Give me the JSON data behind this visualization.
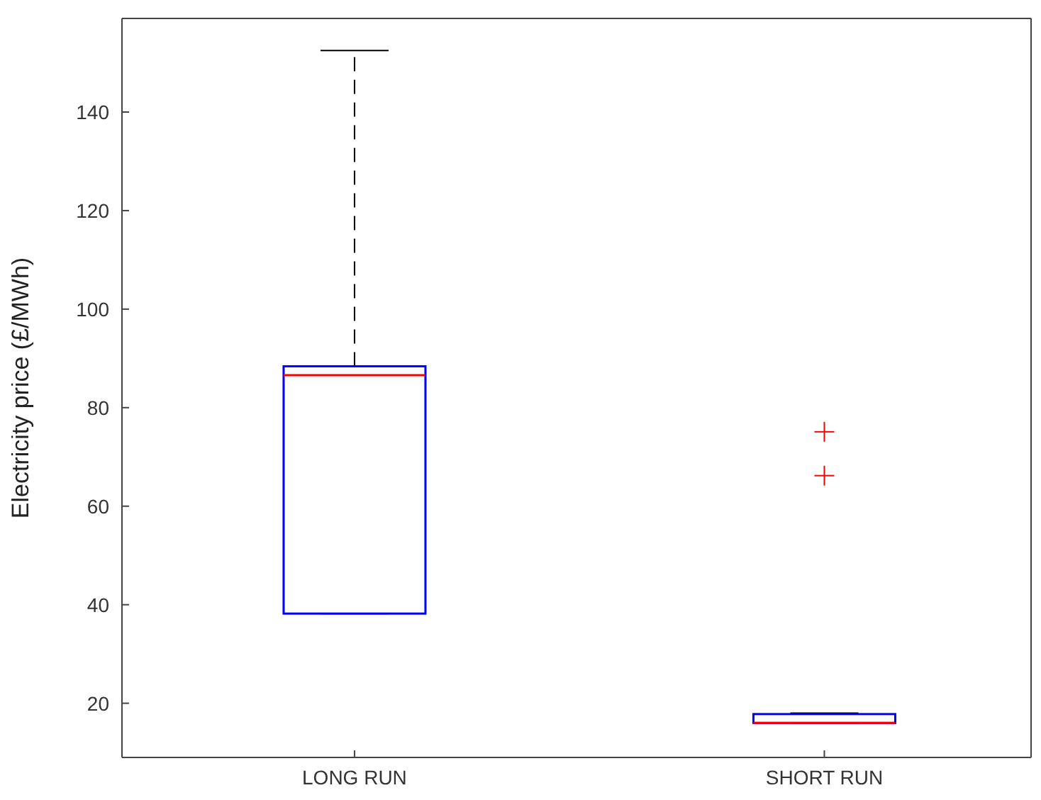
{
  "chart_data": {
    "type": "box",
    "ylabel": "Electricity price (£/MWh)",
    "categories": [
      "LONG RUN",
      "SHORT RUN"
    ],
    "series": [
      {
        "color": "#0000ff",
        "boxes": [
          {
            "low": 38.2,
            "q1": 38.2,
            "median": 86.6,
            "q3": 88.4,
            "high": 152.5
          },
          {
            "low": 15.9,
            "q1": 16.0,
            "median": 16.0,
            "q3": 17.8,
            "high": 18.0,
            "outliers": [
              75.1,
              66.2
            ]
          }
        ]
      }
    ],
    "ylim": [
      9,
      159
    ],
    "yticks": [
      20,
      40,
      60,
      80,
      100,
      120,
      140
    ],
    "grid": false
  }
}
